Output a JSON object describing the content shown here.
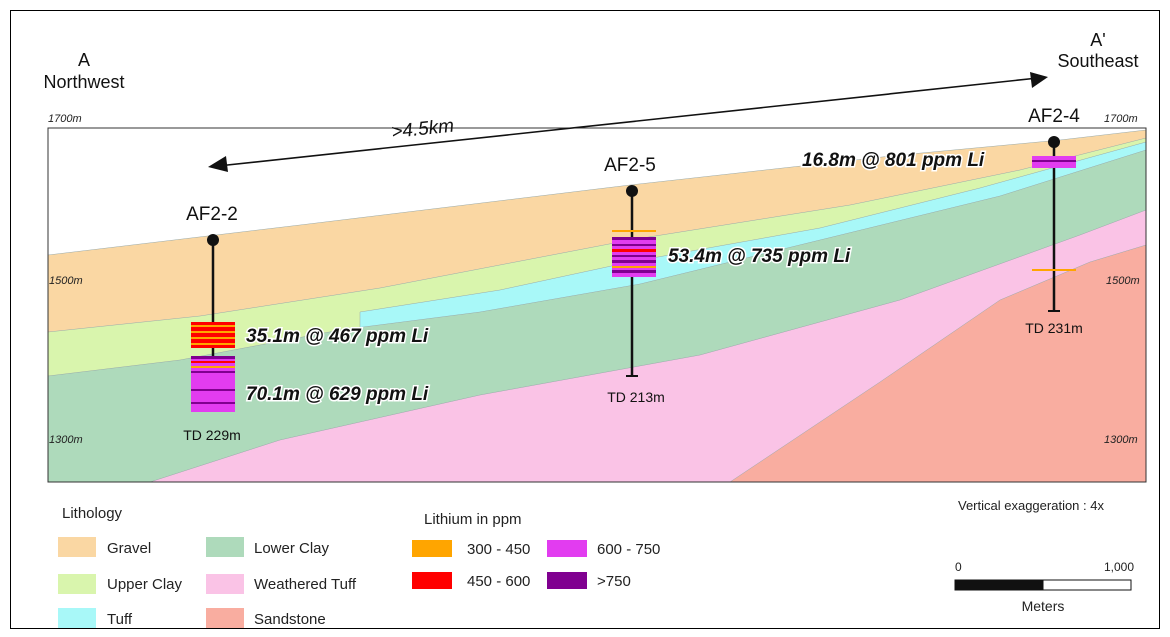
{
  "section": {
    "start_label": "A",
    "start_direction": "Northwest",
    "end_label": "A'",
    "end_direction": "Southeast",
    "distance_label": ">4.5km",
    "elevations": {
      "top": "1700m",
      "middle": "1500m",
      "bottom": "1300m"
    }
  },
  "drillholes": [
    {
      "name": "AF2-2",
      "total_depth": "TD 229m",
      "intercepts": [
        "35.1m @ 467 ppm Li",
        "70.1m @ 629 ppm Li"
      ]
    },
    {
      "name": "AF2-5",
      "total_depth": "TD 213m",
      "intercepts": [
        "53.4m @ 735 ppm Li"
      ]
    },
    {
      "name": "AF2-4",
      "total_depth": "TD 231m",
      "intercepts": [
        "16.8m @ 801 ppm Li"
      ]
    }
  ],
  "lithology_legend": {
    "title": "Lithology",
    "items": [
      {
        "label": "Gravel",
        "color": "#fad7a3"
      },
      {
        "label": "Upper Clay",
        "color": "#d9f5ad"
      },
      {
        "label": "Tuff",
        "color": "#a8f8f8"
      },
      {
        "label": "Lower Clay",
        "color": "#aedabb"
      },
      {
        "label": "Weathered Tuff",
        "color": "#fac3e6"
      },
      {
        "label": "Sandstone",
        "color": "#f9ada0"
      }
    ]
  },
  "lithium_legend": {
    "title": "Lithium in ppm",
    "items": [
      {
        "label": "300 - 450",
        "color": "#ffa500"
      },
      {
        "label": "450 - 600",
        "color": "#ff0000"
      },
      {
        "label": "600 - 750",
        "color": "#e23cf0"
      },
      {
        "label": ">750",
        "color": "#800090"
      }
    ]
  },
  "vertical_exaggeration": "Vertical exaggeration : 4x",
  "scale_bar": {
    "start": "0",
    "end": "1,000",
    "unit": "Meters"
  }
}
